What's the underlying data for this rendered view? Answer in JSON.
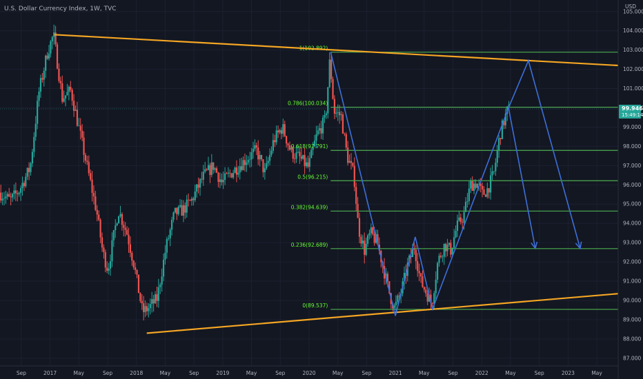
{
  "header": {
    "title": "U.S. Dollar Currency Index, 1W, TVC",
    "currency": "USD"
  },
  "price_tag": {
    "value": "99.946",
    "countdown": "15:49:14"
  },
  "colors": {
    "background": "#131722",
    "up": "#26a69a",
    "down": "#ef5350",
    "fib": "#4caf50",
    "fib_text": "#66ff33",
    "trend": "#f5a623",
    "path": "#3d6fd9",
    "tag": "#26a69a"
  },
  "chart_data": {
    "type": "candlestick",
    "title": "U.S. Dollar Currency Index, 1W, TVC",
    "x_ticks": [
      {
        "label": "Sep",
        "x": 2016.667
      },
      {
        "label": "2017",
        "x": 2017.0
      },
      {
        "label": "May",
        "x": 2017.333
      },
      {
        "label": "Sep",
        "x": 2017.667
      },
      {
        "label": "2018",
        "x": 2018.0
      },
      {
        "label": "May",
        "x": 2018.333
      },
      {
        "label": "Sep",
        "x": 2018.667
      },
      {
        "label": "2019",
        "x": 2019.0
      },
      {
        "label": "May",
        "x": 2019.333
      },
      {
        "label": "Sep",
        "x": 2019.667
      },
      {
        "label": "2020",
        "x": 2020.0
      },
      {
        "label": "May",
        "x": 2020.333
      },
      {
        "label": "Sep",
        "x": 2020.667
      },
      {
        "label": "2021",
        "x": 2021.0
      },
      {
        "label": "May",
        "x": 2021.333
      },
      {
        "label": "Sep",
        "x": 2021.667
      },
      {
        "label": "2022",
        "x": 2022.0
      },
      {
        "label": "May",
        "x": 2022.333
      },
      {
        "label": "Sep",
        "x": 2022.667
      },
      {
        "label": "2023",
        "x": 2023.0
      },
      {
        "label": "May",
        "x": 2023.333
      }
    ],
    "y_ticks": [
      "87.000",
      "88.000",
      "89.000",
      "90.000",
      "91.000",
      "92.000",
      "93.000",
      "94.000",
      "95.000",
      "96.000",
      "97.000",
      "98.000",
      "99.000",
      "100.000",
      "101.000",
      "102.000",
      "103.000",
      "104.000",
      "105.000"
    ],
    "y_range": [
      86.6,
      105.6
    ],
    "x_range": [
      2016.42,
      2023.58
    ],
    "current_price": 99.946,
    "fib_levels": [
      {
        "label": "1(102.892)",
        "value": 102.892
      },
      {
        "label": "0.786(100.034)",
        "value": 100.034
      },
      {
        "label": "0.618(97.791)",
        "value": 97.791
      },
      {
        "label": "0.5(96.215)",
        "value": 96.215
      },
      {
        "label": "0.382(94.639)",
        "value": 94.639
      },
      {
        "label": "0.236(92.689)",
        "value": 92.689
      },
      {
        "label": "0(89.537)",
        "value": 89.537
      }
    ],
    "fib_x_start": 2020.25,
    "trendlines": [
      {
        "x1": 2017.05,
        "y1": 103.8,
        "x2": 2023.58,
        "y2": 102.2
      },
      {
        "x1": 2018.12,
        "y1": 88.3,
        "x2": 2023.58,
        "y2": 90.35
      }
    ],
    "zigzag": [
      {
        "x": 2020.25,
        "y": 102.9
      },
      {
        "x": 2021.0,
        "y": 89.2
      },
      {
        "x": 2021.23,
        "y": 93.3
      },
      {
        "x": 2021.43,
        "y": 89.55
      },
      {
        "x": 2022.31,
        "y": 100.0
      },
      {
        "x": 2022.54,
        "y": 102.45
      },
      {
        "x": 2023.14,
        "y": 92.7
      }
    ],
    "projection": [
      {
        "x": 2022.31,
        "y": 100.0
      },
      {
        "x": 2022.62,
        "y": 92.7
      }
    ],
    "price_path": [
      {
        "x": 2016.42,
        "y": 95.6
      },
      {
        "x": 2016.55,
        "y": 95.2
      },
      {
        "x": 2016.65,
        "y": 95.7
      },
      {
        "x": 2016.78,
        "y": 96.9
      },
      {
        "x": 2016.88,
        "y": 100.8
      },
      {
        "x": 2016.98,
        "y": 102.9
      },
      {
        "x": 2017.05,
        "y": 103.8
      },
      {
        "x": 2017.15,
        "y": 100.5
      },
      {
        "x": 2017.25,
        "y": 100.9
      },
      {
        "x": 2017.35,
        "y": 98.8
      },
      {
        "x": 2017.45,
        "y": 96.7
      },
      {
        "x": 2017.55,
        "y": 94.6
      },
      {
        "x": 2017.62,
        "y": 92.5
      },
      {
        "x": 2017.68,
        "y": 91.6
      },
      {
        "x": 2017.8,
        "y": 94.7
      },
      {
        "x": 2017.9,
        "y": 93.5
      },
      {
        "x": 2017.98,
        "y": 91.9
      },
      {
        "x": 2018.08,
        "y": 89.4
      },
      {
        "x": 2018.15,
        "y": 89.6
      },
      {
        "x": 2018.25,
        "y": 90.1
      },
      {
        "x": 2018.35,
        "y": 92.7
      },
      {
        "x": 2018.45,
        "y": 94.5
      },
      {
        "x": 2018.55,
        "y": 94.7
      },
      {
        "x": 2018.65,
        "y": 95.2
      },
      {
        "x": 2018.78,
        "y": 96.4
      },
      {
        "x": 2018.9,
        "y": 97.0
      },
      {
        "x": 2019.0,
        "y": 96.1
      },
      {
        "x": 2019.1,
        "y": 96.6
      },
      {
        "x": 2019.2,
        "y": 97.0
      },
      {
        "x": 2019.3,
        "y": 97.4
      },
      {
        "x": 2019.4,
        "y": 97.8
      },
      {
        "x": 2019.5,
        "y": 96.6
      },
      {
        "x": 2019.6,
        "y": 98.3
      },
      {
        "x": 2019.7,
        "y": 99.0
      },
      {
        "x": 2019.8,
        "y": 97.7
      },
      {
        "x": 2019.9,
        "y": 97.4
      },
      {
        "x": 2020.0,
        "y": 96.9
      },
      {
        "x": 2020.1,
        "y": 98.6
      },
      {
        "x": 2020.2,
        "y": 99.4
      },
      {
        "x": 2020.25,
        "y": 102.5
      },
      {
        "x": 2020.3,
        "y": 99.8
      },
      {
        "x": 2020.38,
        "y": 99.6
      },
      {
        "x": 2020.45,
        "y": 97.5
      },
      {
        "x": 2020.53,
        "y": 96.5
      },
      {
        "x": 2020.58,
        "y": 93.8
      },
      {
        "x": 2020.65,
        "y": 92.6
      },
      {
        "x": 2020.72,
        "y": 93.5
      },
      {
        "x": 2020.8,
        "y": 93.0
      },
      {
        "x": 2020.88,
        "y": 91.5
      },
      {
        "x": 2020.95,
        "y": 90.2
      },
      {
        "x": 2021.0,
        "y": 89.6
      },
      {
        "x": 2021.08,
        "y": 90.5
      },
      {
        "x": 2021.15,
        "y": 91.8
      },
      {
        "x": 2021.23,
        "y": 92.8
      },
      {
        "x": 2021.3,
        "y": 91.0
      },
      {
        "x": 2021.38,
        "y": 90.3
      },
      {
        "x": 2021.43,
        "y": 89.8
      },
      {
        "x": 2021.5,
        "y": 92.0
      },
      {
        "x": 2021.58,
        "y": 92.9
      },
      {
        "x": 2021.65,
        "y": 92.6
      },
      {
        "x": 2021.72,
        "y": 93.8
      },
      {
        "x": 2021.8,
        "y": 94.4
      },
      {
        "x": 2021.88,
        "y": 96.0
      },
      {
        "x": 2021.95,
        "y": 96.1
      },
      {
        "x": 2022.02,
        "y": 95.5
      },
      {
        "x": 2022.08,
        "y": 95.8
      },
      {
        "x": 2022.15,
        "y": 96.6
      },
      {
        "x": 2022.22,
        "y": 98.6
      },
      {
        "x": 2022.28,
        "y": 99.5
      },
      {
        "x": 2022.31,
        "y": 99.9
      }
    ]
  }
}
